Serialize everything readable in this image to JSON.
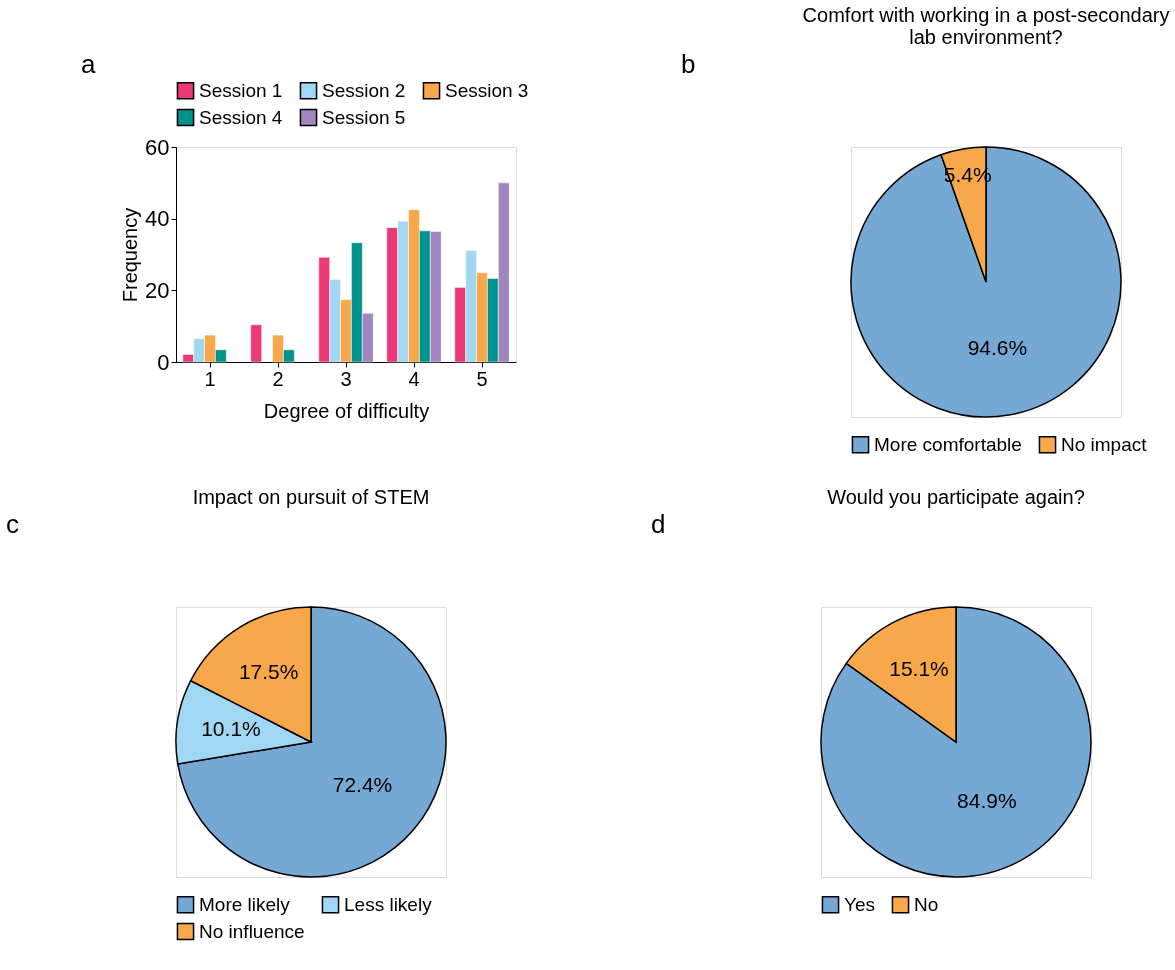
{
  "chart_data": [
    {
      "type": "bar",
      "annotations": [
        "a"
      ],
      "xlabel": "Degree of difficulty",
      "ylabel": "Frequency",
      "categories": [
        "1",
        "2",
        "3",
        "4",
        "5"
      ],
      "ylim": [
        0,
        60
      ],
      "yticks": [
        0,
        20,
        40,
        60
      ],
      "grid": false,
      "legend": "top",
      "series": [
        {
          "name": "Session 1",
          "color": "#ec3877",
          "values": [
            2.1,
            10.4,
            29.2,
            37.5,
            20.8
          ]
        },
        {
          "name": "Session 2",
          "color": "#a0d8f3",
          "values": [
            6.5,
            null,
            23.0,
            39.3,
            31.1
          ]
        },
        {
          "name": "Session 3",
          "color": "#f8a84a",
          "values": [
            7.5,
            7.5,
            17.4,
            42.5,
            24.9
          ]
        },
        {
          "name": "Session 4",
          "color": "#00928f",
          "values": [
            3.4,
            3.4,
            33.3,
            36.6,
            23.3
          ]
        },
        {
          "name": "Session 5",
          "color": "#a186bf",
          "values": [
            null,
            null,
            13.6,
            36.4,
            50.0
          ]
        }
      ]
    },
    {
      "type": "pie",
      "annotations": [
        "b"
      ],
      "title": "Comfort with working in a post-secondary lab environment?",
      "categories": [
        "More comfortable",
        "No impact"
      ],
      "values": [
        94.6,
        5.4
      ],
      "colors": [
        "#76a8d4",
        "#f8a84a"
      ],
      "value_labels": [
        "94.6%",
        "5.4%"
      ],
      "legend": "bottom"
    },
    {
      "type": "pie",
      "annotations": [
        "c"
      ],
      "title": "Impact on pursuit of STEM",
      "categories": [
        "More likely",
        "Less likely",
        "No influence"
      ],
      "values": [
        72.4,
        10.1,
        17.5
      ],
      "colors": [
        "#76a8d4",
        "#a0d8f3",
        "#f8a84a"
      ],
      "value_labels": [
        "72.4%",
        "10.1%",
        "17.5%"
      ],
      "legend": "bottom"
    },
    {
      "type": "pie",
      "annotations": [
        "d"
      ],
      "title": "Would you participate again?",
      "categories": [
        "Yes",
        "No"
      ],
      "values": [
        84.9,
        15.1
      ],
      "colors": [
        "#76a8d4",
        "#f8a84a"
      ],
      "value_labels": [
        "84.9%",
        "15.1%"
      ],
      "legend": "bottom"
    }
  ]
}
